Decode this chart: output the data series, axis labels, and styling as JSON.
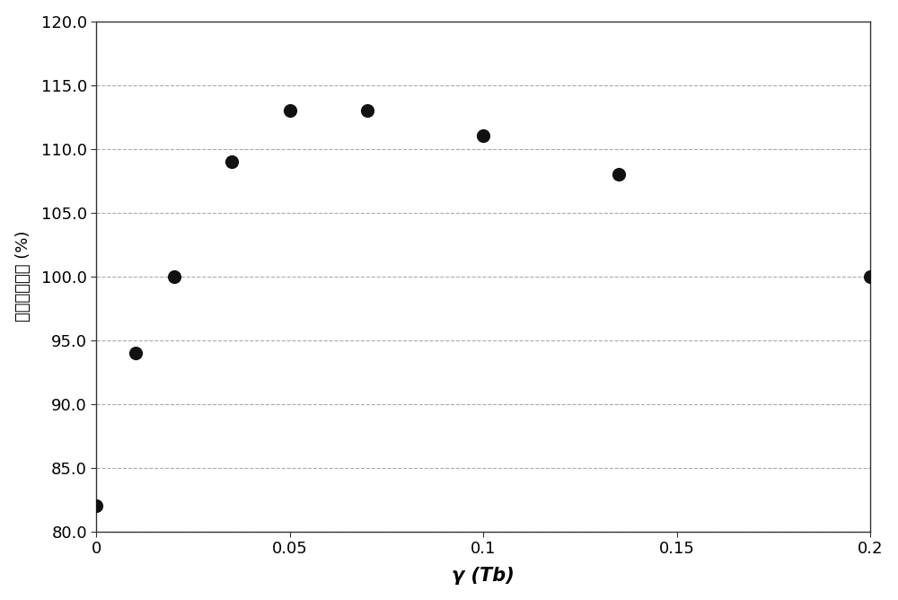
{
  "x": [
    0,
    0.01,
    0.02,
    0.035,
    0.05,
    0.07,
    0.1,
    0.135,
    0.2
  ],
  "y": [
    82,
    94,
    100,
    109,
    113,
    113,
    111,
    108,
    100
  ],
  "xlim": [
    0,
    0.2
  ],
  "ylim": [
    80.0,
    120.0
  ],
  "xticks": [
    0,
    0.05,
    0.1,
    0.15,
    0.2
  ],
  "xtick_labels": [
    "0",
    "0.05",
    "0.1",
    "0.15",
    "0.2"
  ],
  "yticks": [
    80.0,
    85.0,
    90.0,
    95.0,
    100.0,
    105.0,
    110.0,
    115.0,
    120.0
  ],
  "ytick_labels": [
    "80.0",
    "85.0",
    "90.0",
    "95.0",
    "100.0",
    "105.0",
    "110.0",
    "115.0",
    "120.0"
  ],
  "xlabel": "γ (Tb)",
  "ylabel": "相对发光强度 (%)",
  "marker_color": "#111111",
  "marker_size": 120,
  "grid_color": "#aaaaaa",
  "grid_linestyle": "--",
  "background_color": "#ffffff",
  "xlabel_fontsize": 15,
  "ylabel_fontsize": 13,
  "tick_fontsize": 13,
  "spine_color": "#333333"
}
